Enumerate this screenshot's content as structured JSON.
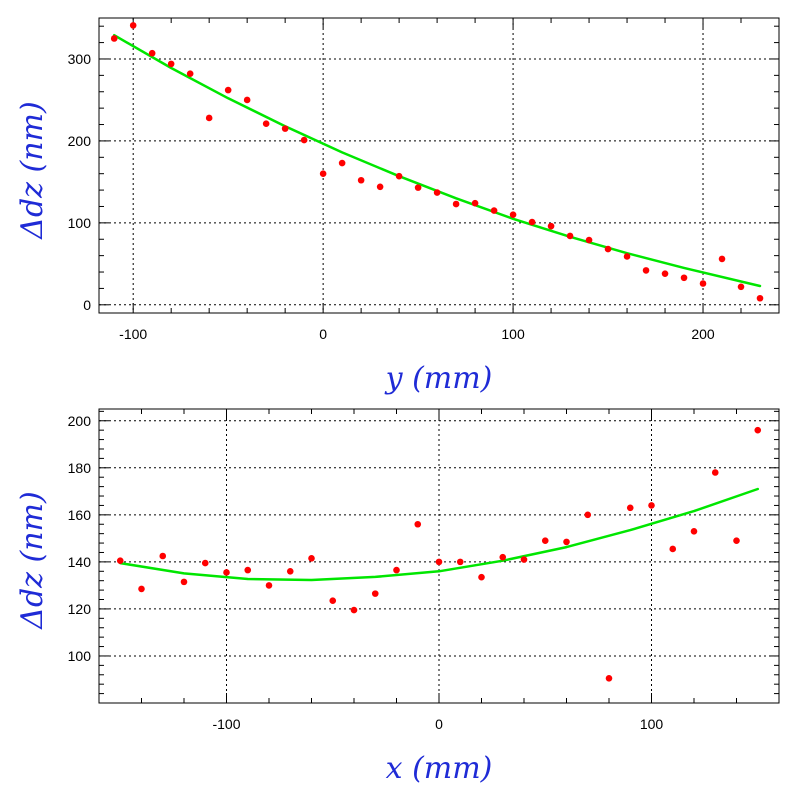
{
  "colors": {
    "points": "#ff0000",
    "fit": "#00e600",
    "axis_labels": "#1f2bd6",
    "grid": "#000000"
  },
  "chart_data": [
    {
      "type": "scatter",
      "xlabel": "y (mm)",
      "ylabel": "Δdz (nm)",
      "xlim": [
        -118,
        240
      ],
      "ylim": [
        -10,
        350
      ],
      "xticks": [
        -100,
        0,
        100,
        200
      ],
      "yticks": [
        0,
        100,
        200,
        300
      ],
      "xtick_labels": [
        "-100",
        "0",
        "100",
        "200"
      ],
      "ytick_labels": [
        "0",
        "100",
        "200",
        "300"
      ],
      "grid": true,
      "series": [
        {
          "kind": "points",
          "x": [
            -110,
            -100,
            -90,
            -80,
            -70,
            -60,
            -50,
            -40,
            -30,
            -20,
            -10,
            0,
            10,
            20,
            30,
            40,
            50,
            60,
            70,
            80,
            90,
            100,
            110,
            120,
            130,
            140,
            150,
            160,
            170,
            180,
            190,
            200,
            210,
            220,
            230
          ],
          "y": [
            325,
            341,
            307,
            294,
            282,
            228,
            262,
            250,
            221,
            215,
            201,
            160,
            173,
            152,
            144,
            157,
            143,
            137,
            123,
            124,
            115,
            110,
            101,
            96,
            84,
            79,
            68,
            59,
            42,
            38,
            33,
            26,
            56,
            22,
            8
          ]
        },
        {
          "kind": "fit",
          "x": [
            -110,
            -80,
            -50,
            -20,
            10,
            40,
            70,
            100,
            130,
            160,
            190,
            230
          ],
          "y": [
            329,
            289,
            252,
            218,
            186,
            157,
            130,
            105,
            83,
            63,
            45,
            23
          ]
        }
      ]
    },
    {
      "type": "scatter",
      "xlabel": "x (mm)",
      "ylabel": "Δdz (nm)",
      "xlim": [
        -160,
        160
      ],
      "ylim": [
        80,
        205
      ],
      "xticks": [
        -100,
        0,
        100
      ],
      "yticks": [
        100,
        120,
        140,
        160,
        180,
        200
      ],
      "xtick_labels": [
        "-100",
        "0",
        "100"
      ],
      "ytick_labels": [
        "100",
        "120",
        "140",
        "160",
        "180",
        "200"
      ],
      "grid": true,
      "series": [
        {
          "kind": "points",
          "x": [
            -150,
            -140,
            -130,
            -120,
            -110,
            -100,
            -90,
            -80,
            -70,
            -60,
            -50,
            -40,
            -30,
            -20,
            -10,
            0,
            10,
            20,
            30,
            40,
            50,
            60,
            70,
            80,
            90,
            100,
            110,
            120,
            130,
            140,
            150
          ],
          "y": [
            140.5,
            128.5,
            142.5,
            131.5,
            139.5,
            135.5,
            136.5,
            130,
            136,
            141.5,
            123.5,
            119.5,
            126.5,
            136.5,
            156,
            140,
            140,
            133.5,
            142,
            141,
            149,
            148.5,
            160,
            90.5,
            163,
            164,
            145.5,
            153,
            178,
            149,
            196
          ]
        },
        {
          "kind": "fit",
          "x": [
            -150,
            -120,
            -90,
            -60,
            -30,
            0,
            30,
            60,
            90,
            120,
            150
          ],
          "y": [
            139.5,
            135.1,
            132.7,
            132.3,
            133.6,
            136.0,
            140.5,
            146.3,
            153.5,
            161.6,
            171.0
          ]
        }
      ]
    }
  ]
}
